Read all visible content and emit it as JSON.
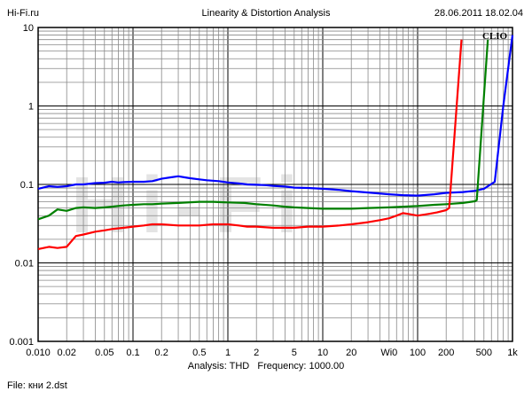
{
  "header": {
    "left": "Hi-Fi.ru",
    "center": "Linearity & Distortion Analysis",
    "right": "28.06.2011 18.02.04"
  },
  "footer": {
    "analysis_label": "Analysis: THD",
    "frequency_label": "Frequency: 1000.00",
    "file": "File: кни 2.dst"
  },
  "chart_data": {
    "type": "line",
    "title": "Linearity & Distortion Analysis",
    "xscale": "log",
    "yscale": "log",
    "xlim": [
      0.01,
      1000
    ],
    "ylim": [
      0.001,
      10
    ],
    "grid": true,
    "brand_label": "CLIO",
    "watermark": "Hi-Fi",
    "x_tick_labels": [
      {
        "v": 0.01,
        "t": "0.010"
      },
      {
        "v": 0.02,
        "t": "0.02"
      },
      {
        "v": 0.05,
        "t": "0.05"
      },
      {
        "v": 0.1,
        "t": "0.1"
      },
      {
        "v": 0.2,
        "t": "0.2"
      },
      {
        "v": 0.5,
        "t": "0.5"
      },
      {
        "v": 1,
        "t": "1"
      },
      {
        "v": 2,
        "t": "2"
      },
      {
        "v": 5,
        "t": "5"
      },
      {
        "v": 10,
        "t": "10"
      },
      {
        "v": 20,
        "t": "20"
      },
      {
        "v": 50,
        "t": "Wi0"
      },
      {
        "v": 100,
        "t": "100"
      },
      {
        "v": 200,
        "t": "200"
      },
      {
        "v": 500,
        "t": "500"
      },
      {
        "v": 1000,
        "t": "1k"
      }
    ],
    "y_tick_labels": [
      {
        "v": 10,
        "t": "10"
      },
      {
        "v": 1,
        "t": "1"
      },
      {
        "v": 0.1,
        "t": "0.1"
      },
      {
        "v": 0.01,
        "t": "0.01"
      },
      {
        "v": 0.001,
        "t": "0.001"
      }
    ],
    "series": [
      {
        "color": "#0000ff",
        "points": [
          [
            0.01,
            0.088
          ],
          [
            0.013,
            0.095
          ],
          [
            0.016,
            0.093
          ],
          [
            0.02,
            0.095
          ],
          [
            0.025,
            0.1
          ],
          [
            0.03,
            0.1
          ],
          [
            0.04,
            0.104
          ],
          [
            0.05,
            0.105
          ],
          [
            0.06,
            0.108
          ],
          [
            0.07,
            0.106
          ],
          [
            0.08,
            0.107
          ],
          [
            0.1,
            0.108
          ],
          [
            0.13,
            0.108
          ],
          [
            0.16,
            0.11
          ],
          [
            0.2,
            0.118
          ],
          [
            0.25,
            0.123
          ],
          [
            0.3,
            0.127
          ],
          [
            0.35,
            0.123
          ],
          [
            0.4,
            0.12
          ],
          [
            0.5,
            0.116
          ],
          [
            0.6,
            0.113
          ],
          [
            0.8,
            0.11
          ],
          [
            1,
            0.106
          ],
          [
            1.3,
            0.103
          ],
          [
            1.6,
            0.1
          ],
          [
            2,
            0.099
          ],
          [
            2.5,
            0.098
          ],
          [
            3,
            0.096
          ],
          [
            4,
            0.094
          ],
          [
            5,
            0.091
          ],
          [
            7,
            0.09
          ],
          [
            10,
            0.088
          ],
          [
            15,
            0.085
          ],
          [
            20,
            0.082
          ],
          [
            30,
            0.079
          ],
          [
            50,
            0.075
          ],
          [
            70,
            0.073
          ],
          [
            100,
            0.072
          ],
          [
            150,
            0.075
          ],
          [
            200,
            0.078
          ],
          [
            300,
            0.08
          ],
          [
            400,
            0.083
          ],
          [
            500,
            0.088
          ],
          [
            650,
            0.108
          ],
          [
            800,
            1.0
          ],
          [
            1000,
            8.0
          ]
        ]
      },
      {
        "color": "#008000",
        "points": [
          [
            0.01,
            0.036
          ],
          [
            0.013,
            0.04
          ],
          [
            0.016,
            0.048
          ],
          [
            0.02,
            0.046
          ],
          [
            0.025,
            0.05
          ],
          [
            0.03,
            0.051
          ],
          [
            0.04,
            0.05
          ],
          [
            0.05,
            0.051
          ],
          [
            0.06,
            0.052
          ],
          [
            0.08,
            0.054
          ],
          [
            0.1,
            0.055
          ],
          [
            0.13,
            0.056
          ],
          [
            0.16,
            0.056
          ],
          [
            0.2,
            0.057
          ],
          [
            0.3,
            0.058
          ],
          [
            0.5,
            0.06
          ],
          [
            0.7,
            0.06
          ],
          [
            1,
            0.059
          ],
          [
            1.5,
            0.058
          ],
          [
            2,
            0.056
          ],
          [
            3,
            0.054
          ],
          [
            4,
            0.052
          ],
          [
            5,
            0.051
          ],
          [
            7,
            0.05
          ],
          [
            10,
            0.049
          ],
          [
            20,
            0.049
          ],
          [
            30,
            0.05
          ],
          [
            50,
            0.051
          ],
          [
            70,
            0.052
          ],
          [
            100,
            0.053
          ],
          [
            150,
            0.055
          ],
          [
            200,
            0.056
          ],
          [
            300,
            0.058
          ],
          [
            400,
            0.061
          ],
          [
            420,
            0.063
          ],
          [
            550,
            7.0
          ]
        ]
      },
      {
        "color": "#ff0000",
        "points": [
          [
            0.01,
            0.015
          ],
          [
            0.013,
            0.016
          ],
          [
            0.016,
            0.0155
          ],
          [
            0.02,
            0.016
          ],
          [
            0.025,
            0.022
          ],
          [
            0.03,
            0.023
          ],
          [
            0.04,
            0.025
          ],
          [
            0.05,
            0.026
          ],
          [
            0.06,
            0.027
          ],
          [
            0.08,
            0.028
          ],
          [
            0.1,
            0.029
          ],
          [
            0.13,
            0.03
          ],
          [
            0.16,
            0.031
          ],
          [
            0.2,
            0.031
          ],
          [
            0.3,
            0.03
          ],
          [
            0.4,
            0.03
          ],
          [
            0.5,
            0.03
          ],
          [
            0.7,
            0.031
          ],
          [
            1,
            0.031
          ],
          [
            1.3,
            0.03
          ],
          [
            1.6,
            0.029
          ],
          [
            2,
            0.029
          ],
          [
            3,
            0.028
          ],
          [
            5,
            0.028
          ],
          [
            7,
            0.029
          ],
          [
            10,
            0.029
          ],
          [
            15,
            0.03
          ],
          [
            20,
            0.031
          ],
          [
            30,
            0.033
          ],
          [
            40,
            0.035
          ],
          [
            50,
            0.037
          ],
          [
            60,
            0.04
          ],
          [
            70,
            0.043
          ],
          [
            80,
            0.042
          ],
          [
            100,
            0.04
          ],
          [
            130,
            0.042
          ],
          [
            160,
            0.044
          ],
          [
            200,
            0.047
          ],
          [
            215,
            0.05
          ],
          [
            290,
            7.0
          ]
        ]
      }
    ]
  }
}
